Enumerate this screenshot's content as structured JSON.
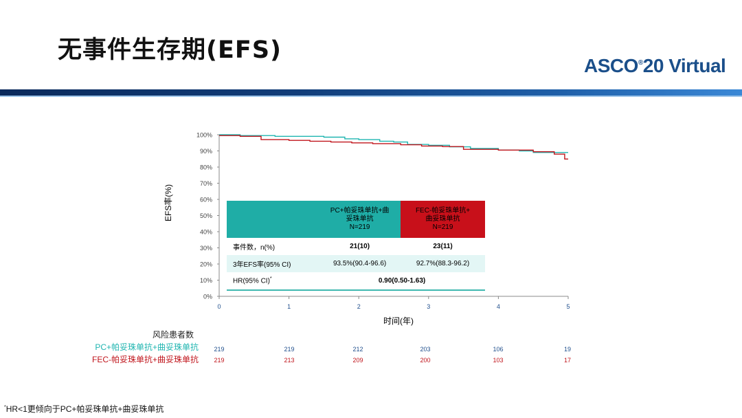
{
  "title": "无事件生存期(EFS)",
  "logo": {
    "main": "ASCO",
    "sup": "®",
    "rest": "20 Virtual"
  },
  "y_axis_label": "EFS率(%)",
  "x_axis_label": "时间(年)",
  "colors": {
    "pc": "#1fb5b0",
    "fec": "#c0141b",
    "logo": "#1b4f8a"
  },
  "table": {
    "header_pc": [
      "PC+帕妥珠单抗+曲",
      "妥珠单抗",
      "N=219"
    ],
    "header_fec": [
      "FEC-帕妥珠单抗+",
      "曲妥珠单抗",
      "N=219"
    ],
    "row1": {
      "label": "事件数，n(%)",
      "pc": "21(10)",
      "fec": "23(11)"
    },
    "row2": {
      "label": "3年EFS率(95% CI)",
      "pc": "93.5%(90.4-96.6)",
      "fec": "92.7%(88.3-96.2)"
    },
    "row3": {
      "label": "HR(95% CI)",
      "label_sup": "*",
      "value": "0.90(0.50-1.63)"
    }
  },
  "risk": {
    "title": "风险患者数",
    "pc_label": "PC+帕妥珠单抗+曲妥珠单抗",
    "fec_label": "FEC-帕妥珠单抗+曲妥珠单抗",
    "pc": [
      "219",
      "219",
      "212",
      "203",
      "106",
      "19"
    ],
    "fec": [
      "219",
      "213",
      "209",
      "200",
      "103",
      "17"
    ]
  },
  "footnote": {
    "sup": "*",
    "text": "HR<1更倾向于PC+帕妥珠单抗+曲妥珠单抗"
  },
  "chart_data": {
    "type": "line",
    "xlabel": "时间(年)",
    "ylabel": "EFS率(%)",
    "xlim": [
      0,
      5
    ],
    "ylim": [
      0,
      100
    ],
    "x_ticks": [
      "0",
      "1",
      "2",
      "3",
      "4",
      "5"
    ],
    "y_ticks": [
      "0%",
      "10%",
      "20%",
      "30%",
      "40%",
      "50%",
      "60%",
      "70%",
      "80%",
      "90%",
      "100%"
    ],
    "grid": false,
    "series": [
      {
        "name": "PC+帕妥珠单抗+曲妥珠单抗",
        "color": "#1fb5b0",
        "points": [
          [
            0,
            100
          ],
          [
            0.3,
            99.5
          ],
          [
            0.8,
            99
          ],
          [
            1.5,
            98.5
          ],
          [
            1.8,
            97.5
          ],
          [
            2.0,
            97
          ],
          [
            2.3,
            96
          ],
          [
            2.5,
            95.5
          ],
          [
            2.7,
            94
          ],
          [
            3.0,
            93.5
          ],
          [
            3.3,
            92.5
          ],
          [
            3.6,
            91.5
          ],
          [
            4.0,
            90.5
          ],
          [
            4.3,
            90
          ],
          [
            4.5,
            89
          ],
          [
            5.0,
            89
          ]
        ]
      },
      {
        "name": "FEC-帕妥珠单抗+曲妥珠单抗",
        "color": "#c0141b",
        "points": [
          [
            0,
            99.5
          ],
          [
            0.3,
            99
          ],
          [
            0.6,
            97
          ],
          [
            1.0,
            96.5
          ],
          [
            1.3,
            96
          ],
          [
            1.6,
            95.5
          ],
          [
            1.9,
            95
          ],
          [
            2.2,
            94.5
          ],
          [
            2.6,
            93.8
          ],
          [
            2.9,
            93
          ],
          [
            3.2,
            92.7
          ],
          [
            3.5,
            91
          ],
          [
            4.0,
            90.5
          ],
          [
            4.5,
            89.5
          ],
          [
            4.8,
            88
          ],
          [
            4.95,
            85
          ],
          [
            5.0,
            85
          ]
        ]
      }
    ]
  }
}
